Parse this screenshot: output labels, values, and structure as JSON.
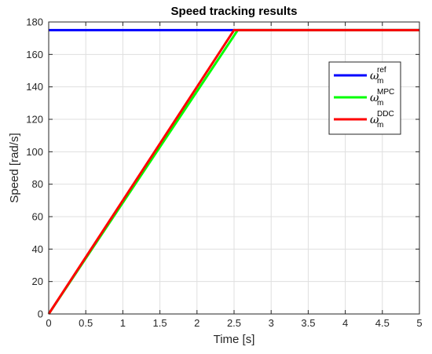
{
  "chart_data": {
    "type": "line",
    "title": "Speed tracking results",
    "xlabel": "Time [s]",
    "ylabel": "Speed [rad/s]",
    "xlim": [
      0,
      5
    ],
    "ylim": [
      0,
      180
    ],
    "xticks": [
      0,
      0.5,
      1,
      1.5,
      2,
      2.5,
      3,
      3.5,
      4,
      4.5,
      5
    ],
    "xtick_labels": [
      "0",
      "0.5",
      "1",
      "1.5",
      "2",
      "2.5",
      "3",
      "3.5",
      "4",
      "4.5",
      "5"
    ],
    "yticks": [
      0,
      20,
      40,
      60,
      80,
      100,
      120,
      140,
      160,
      180
    ],
    "ytick_labels": [
      "0",
      "20",
      "40",
      "60",
      "80",
      "100",
      "120",
      "140",
      "160",
      "180"
    ],
    "grid": true,
    "legend_position": "top-right",
    "series": [
      {
        "name": "ω",
        "sub": "m",
        "sup": "ref",
        "color": "#0000ff",
        "x": [
          0,
          5
        ],
        "y": [
          175,
          175
        ]
      },
      {
        "name": "ω",
        "sub": "m",
        "sup": "MPC",
        "color": "#00ff00",
        "x": [
          0,
          2.55,
          5
        ],
        "y": [
          0,
          175,
          175
        ]
      },
      {
        "name": "ω",
        "sub": "m",
        "sup": "DDC",
        "color": "#ff0000",
        "x": [
          0,
          2.5,
          5
        ],
        "y": [
          0,
          175,
          175
        ]
      }
    ]
  }
}
